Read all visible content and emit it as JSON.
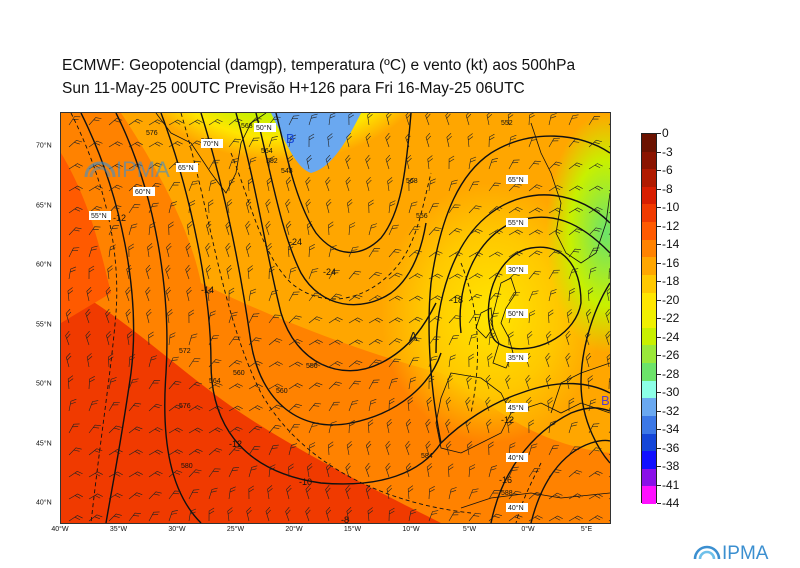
{
  "title": {
    "line1": "ECMWF:  Geopotencial (damgp), temperatura (ºC) e vento (kt) aos 500hPa",
    "line2": "Sun 11-May-25 00UTC Previsão H+126 para Fri 16-May-25 06UTC"
  },
  "logo": {
    "text": "IPMA"
  },
  "axes": {
    "lon_labels": [
      "40°W",
      "35°W",
      "30°W",
      "25°W",
      "20°W",
      "15°W",
      "10°W",
      "5°W",
      "0°W",
      "5°E"
    ],
    "lat_labels": [
      "70°N",
      "65°N",
      "60°N",
      "55°N",
      "50°N",
      "45°N",
      "40°N"
    ]
  },
  "map_labels": {
    "grid_lat": [
      "70°N",
      "65°N",
      "60°N",
      "55°N",
      "50°N",
      "45°N",
      "40°N",
      "40°N",
      "35°N",
      "30°N",
      "50°N",
      "55°N",
      "65°N"
    ],
    "temp_contours": [
      "-12",
      "-24",
      "-24",
      "-18",
      "-14",
      "-12",
      "-10",
      "-8",
      "-16",
      "-12"
    ],
    "geo_contours": [
      "576",
      "572",
      "568",
      "564",
      "560",
      "556",
      "552",
      "548",
      "568",
      "556",
      "552",
      "560",
      "564",
      "572",
      "576",
      "580",
      "584",
      "588"
    ],
    "centers": [
      "B",
      "A",
      "B"
    ]
  },
  "colorbar": {
    "labels": [
      "0",
      "-3",
      "-6",
      "-8",
      "-10",
      "-12",
      "-14",
      "-16",
      "-18",
      "-20",
      "-22",
      "-24",
      "-26",
      "-28",
      "-30",
      "-32",
      "-34",
      "-36",
      "-38",
      "-41",
      "-44"
    ],
    "colors": [
      "#6b1200",
      "#8a1400",
      "#b01a00",
      "#d81e00",
      "#f03a00",
      "#ff5a00",
      "#ff8200",
      "#ffa600",
      "#ffc800",
      "#ffe600",
      "#f0f000",
      "#c8f000",
      "#9ae83a",
      "#6ce36a",
      "#8cffe6",
      "#6aa8f0",
      "#3c78e6",
      "#1446d8",
      "#1010ff",
      "#8a10e8",
      "#ff10ff"
    ]
  },
  "palette": {
    "frame": "#333333",
    "contour": "#111111",
    "ipma_blue": "#3b8fd0"
  }
}
